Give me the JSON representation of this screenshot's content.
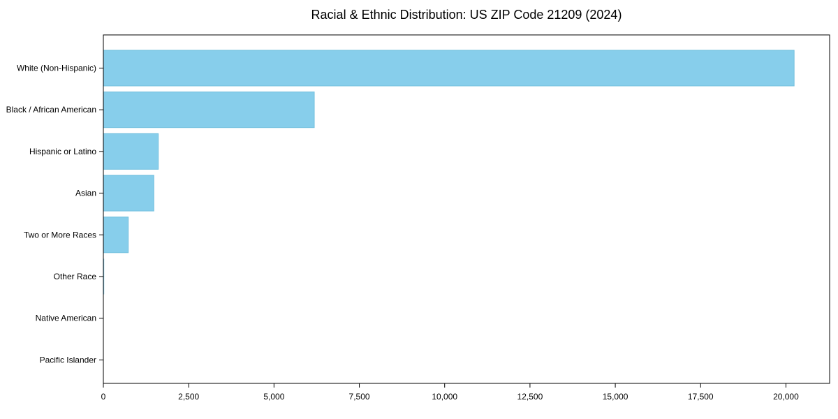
{
  "figure": {
    "background": "#ffffff"
  },
  "chart_data": {
    "type": "bar",
    "orientation": "horizontal",
    "title": "Racial & Ethnic Distribution: US ZIP Code 21209 (2024)",
    "categories": [
      "White (Non-Hispanic)",
      "Black / African American",
      "Hispanic or Latino",
      "Asian",
      "Two or More Races",
      "Other Race",
      "Native American",
      "Pacific Islander"
    ],
    "values": [
      20240,
      6180,
      1610,
      1480,
      730,
      25,
      10,
      5
    ],
    "xlabel": "",
    "ylabel": "",
    "xlim": [
      0,
      21280
    ],
    "x_ticks": [
      0,
      2500,
      5000,
      7500,
      10000,
      12500,
      15000,
      17500,
      20000
    ],
    "x_tick_labels": [
      "0",
      "2,500",
      "5,000",
      "7,500",
      "10,000",
      "12,500",
      "15,000",
      "17,500",
      "20,000"
    ],
    "grid": false,
    "legend": "none",
    "bar_color": "#87CEEB",
    "bar_edge_color": "#72c0de",
    "axis_color": "#000000",
    "text_color": "#000000"
  }
}
